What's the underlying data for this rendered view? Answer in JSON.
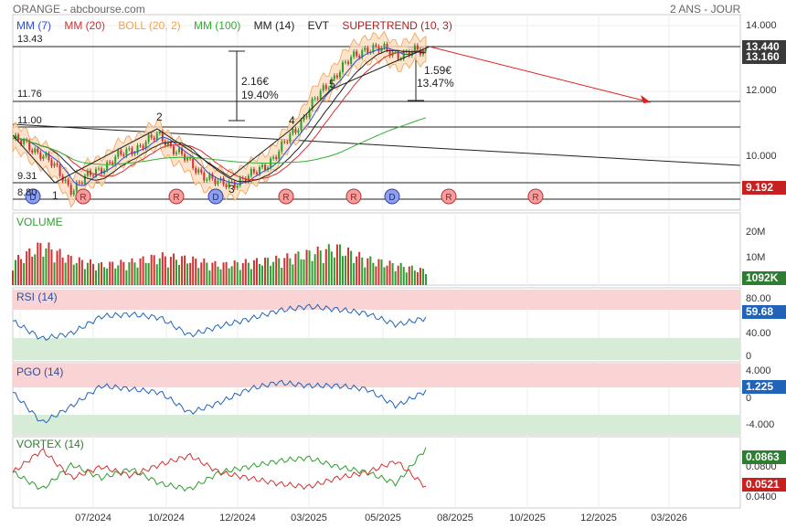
{
  "header": {
    "title": "ORANGE - abcbourse.com",
    "period": "2 ANS - JOUR"
  },
  "legend": {
    "mm7": {
      "label": "MM (7)",
      "color": "#2a4fd8"
    },
    "mm20": {
      "label": "MM (20)",
      "color": "#d43030"
    },
    "boll": {
      "label": "BOLL (20, 2)",
      "color": "#f0a050"
    },
    "mm100": {
      "label": "MM (100)",
      "color": "#30b030"
    },
    "mm14": {
      "label": "MM (14)",
      "color": "#222222"
    },
    "evt": {
      "label": "EVT",
      "color": "#222222"
    },
    "supertrend": {
      "label": "SUPERTREND (10, 3)",
      "color": "#b02020"
    }
  },
  "levels": {
    "l1": "13.43",
    "l2": "11.76",
    "l3": "11.00",
    "l4": "9.31",
    "l5": "8.80"
  },
  "annotations": {
    "move1_value": "2.16€",
    "move1_pct": "19.40%",
    "move2_value": "1.59€",
    "move2_pct": "13.47%",
    "waves": [
      "1",
      "2",
      "3",
      "4",
      "5"
    ]
  },
  "events": [
    "D",
    "R",
    "R",
    "D",
    "R",
    "R",
    "D",
    "R",
    "R"
  ],
  "badges": {
    "price_high": "13.440",
    "price_last": "13.160",
    "supertrend": "9.192",
    "volume": "1092K",
    "rsi": "59.68",
    "pgo": "1.225",
    "vortex_plus": "0.0863",
    "vortex_minus": "0.0521"
  },
  "panels": {
    "volume": "VOLUME",
    "rsi": "RSI (14)",
    "pgo": "PGO (14)",
    "vortex": "VORTEX (14)"
  },
  "x_labels": [
    "07/2024",
    "10/2024",
    "12/2024",
    "03/2025",
    "05/2025",
    "08/2025",
    "10/2025",
    "12/2025",
    "03/2026"
  ],
  "chart_data": [
    {
      "type": "line",
      "title": "ORANGE - abcbourse.com",
      "ylim": [
        8.7,
        14.2
      ],
      "yticks": [
        "14.000",
        "12.000",
        "10.000"
      ],
      "x": [
        "2024-05",
        "2024-06",
        "2024-07",
        "2024-08",
        "2024-09",
        "2024-10",
        "2024-11",
        "2024-12",
        "2025-01",
        "2025-02",
        "2025-03",
        "2025-04",
        "2025-05",
        "2025-06",
        "2025-07"
      ],
      "series": [
        {
          "name": "ORANGE",
          "values": [
            10.7,
            10.3,
            9.3,
            9.9,
            10.4,
            10.8,
            10.0,
            9.4,
            9.6,
            10.3,
            11.5,
            12.6,
            13.3,
            13.1,
            13.16
          ]
        }
      ]
    },
    {
      "type": "bar",
      "title": "VOLUME",
      "yticks": [
        "20M",
        "10M"
      ],
      "x": [
        "2024-05",
        "2024-06",
        "2024-07",
        "2024-08",
        "2024-09",
        "2024-10",
        "2024-11",
        "2024-12",
        "2025-01",
        "2025-02",
        "2025-03",
        "2025-04",
        "2025-05",
        "2025-06",
        "2025-07"
      ],
      "values": [
        8,
        14,
        9,
        7,
        8,
        10,
        9,
        7,
        8,
        9,
        11,
        13,
        9,
        7,
        5
      ]
    },
    {
      "type": "line",
      "title": "RSI (14)",
      "ylim": [
        0,
        100
      ],
      "yticks": [
        "80.00",
        "40.00",
        "0"
      ],
      "x": [
        "2024-05",
        "2024-06",
        "2024-07",
        "2024-08",
        "2024-09",
        "2024-10",
        "2024-11",
        "2024-12",
        "2025-01",
        "2025-02",
        "2025-03",
        "2025-04",
        "2025-05",
        "2025-06",
        "2025-07"
      ],
      "series": [
        {
          "name": "RSI (14)",
          "values": [
            55,
            30,
            38,
            62,
            65,
            60,
            35,
            48,
            58,
            70,
            76,
            72,
            66,
            50,
            59.68
          ]
        }
      ]
    },
    {
      "type": "line",
      "title": "PGO (14)",
      "ylim": [
        -5,
        5
      ],
      "yticks": [
        "4.000",
        "0",
        "-4.000"
      ],
      "x": [
        "2024-05",
        "2024-06",
        "2024-07",
        "2024-08",
        "2024-09",
        "2024-10",
        "2024-11",
        "2024-12",
        "2025-01",
        "2025-02",
        "2025-03",
        "2025-04",
        "2025-05",
        "2025-06",
        "2025-07"
      ],
      "series": [
        {
          "name": "PGO (14)",
          "values": [
            1,
            -3.5,
            -1,
            2,
            1.5,
            1,
            -2,
            -0.5,
            1.5,
            2.5,
            2,
            2,
            1.5,
            -1,
            1.225
          ]
        }
      ]
    },
    {
      "type": "line",
      "title": "VORTEX (14)",
      "yticks": [
        "0.0800",
        "0.0400"
      ],
      "x": [
        "2024-05",
        "2024-06",
        "2024-07",
        "2024-08",
        "2024-09",
        "2024-10",
        "2024-11",
        "2024-12",
        "2025-01",
        "2025-02",
        "2025-03",
        "2025-04",
        "2025-05",
        "2025-06",
        "2025-07"
      ],
      "series": [
        {
          "values": [
            0.065,
            0.05,
            0.072,
            0.06,
            0.068,
            0.055,
            0.05,
            0.065,
            0.07,
            0.075,
            0.078,
            0.07,
            0.065,
            0.055,
            0.0863
          ]
        },
        {
          "values": [
            0.065,
            0.085,
            0.06,
            0.07,
            0.062,
            0.072,
            0.08,
            0.065,
            0.06,
            0.055,
            0.052,
            0.06,
            0.065,
            0.075,
            0.0521
          ]
        }
      ]
    }
  ]
}
